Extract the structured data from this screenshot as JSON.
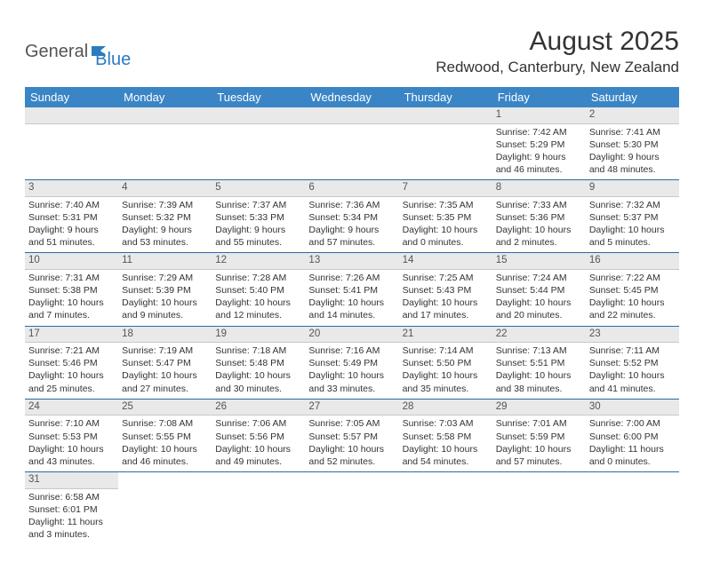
{
  "logo": {
    "part1": "General",
    "part2": "Blue"
  },
  "title": "August 2025",
  "location": "Redwood, Canterbury, New Zealand",
  "weekdays": [
    "Sunday",
    "Monday",
    "Tuesday",
    "Wednesday",
    "Thursday",
    "Friday",
    "Saturday"
  ],
  "colors": {
    "header_bg": "#3a85c6",
    "header_text": "#ffffff",
    "daynum_bg": "#e9e9e9",
    "week_border": "#2b6aa8",
    "logo_blue": "#2b7bbf",
    "text": "#333333"
  },
  "weeks": [
    [
      null,
      null,
      null,
      null,
      null,
      {
        "n": "1",
        "sunrise": "7:42 AM",
        "sunset": "5:29 PM",
        "daylight": "9 hours and 46 minutes."
      },
      {
        "n": "2",
        "sunrise": "7:41 AM",
        "sunset": "5:30 PM",
        "daylight": "9 hours and 48 minutes."
      }
    ],
    [
      {
        "n": "3",
        "sunrise": "7:40 AM",
        "sunset": "5:31 PM",
        "daylight": "9 hours and 51 minutes."
      },
      {
        "n": "4",
        "sunrise": "7:39 AM",
        "sunset": "5:32 PM",
        "daylight": "9 hours and 53 minutes."
      },
      {
        "n": "5",
        "sunrise": "7:37 AM",
        "sunset": "5:33 PM",
        "daylight": "9 hours and 55 minutes."
      },
      {
        "n": "6",
        "sunrise": "7:36 AM",
        "sunset": "5:34 PM",
        "daylight": "9 hours and 57 minutes."
      },
      {
        "n": "7",
        "sunrise": "7:35 AM",
        "sunset": "5:35 PM",
        "daylight": "10 hours and 0 minutes."
      },
      {
        "n": "8",
        "sunrise": "7:33 AM",
        "sunset": "5:36 PM",
        "daylight": "10 hours and 2 minutes."
      },
      {
        "n": "9",
        "sunrise": "7:32 AM",
        "sunset": "5:37 PM",
        "daylight": "10 hours and 5 minutes."
      }
    ],
    [
      {
        "n": "10",
        "sunrise": "7:31 AM",
        "sunset": "5:38 PM",
        "daylight": "10 hours and 7 minutes."
      },
      {
        "n": "11",
        "sunrise": "7:29 AM",
        "sunset": "5:39 PM",
        "daylight": "10 hours and 9 minutes."
      },
      {
        "n": "12",
        "sunrise": "7:28 AM",
        "sunset": "5:40 PM",
        "daylight": "10 hours and 12 minutes."
      },
      {
        "n": "13",
        "sunrise": "7:26 AM",
        "sunset": "5:41 PM",
        "daylight": "10 hours and 14 minutes."
      },
      {
        "n": "14",
        "sunrise": "7:25 AM",
        "sunset": "5:43 PM",
        "daylight": "10 hours and 17 minutes."
      },
      {
        "n": "15",
        "sunrise": "7:24 AM",
        "sunset": "5:44 PM",
        "daylight": "10 hours and 20 minutes."
      },
      {
        "n": "16",
        "sunrise": "7:22 AM",
        "sunset": "5:45 PM",
        "daylight": "10 hours and 22 minutes."
      }
    ],
    [
      {
        "n": "17",
        "sunrise": "7:21 AM",
        "sunset": "5:46 PM",
        "daylight": "10 hours and 25 minutes."
      },
      {
        "n": "18",
        "sunrise": "7:19 AM",
        "sunset": "5:47 PM",
        "daylight": "10 hours and 27 minutes."
      },
      {
        "n": "19",
        "sunrise": "7:18 AM",
        "sunset": "5:48 PM",
        "daylight": "10 hours and 30 minutes."
      },
      {
        "n": "20",
        "sunrise": "7:16 AM",
        "sunset": "5:49 PM",
        "daylight": "10 hours and 33 minutes."
      },
      {
        "n": "21",
        "sunrise": "7:14 AM",
        "sunset": "5:50 PM",
        "daylight": "10 hours and 35 minutes."
      },
      {
        "n": "22",
        "sunrise": "7:13 AM",
        "sunset": "5:51 PM",
        "daylight": "10 hours and 38 minutes."
      },
      {
        "n": "23",
        "sunrise": "7:11 AM",
        "sunset": "5:52 PM",
        "daylight": "10 hours and 41 minutes."
      }
    ],
    [
      {
        "n": "24",
        "sunrise": "7:10 AM",
        "sunset": "5:53 PM",
        "daylight": "10 hours and 43 minutes."
      },
      {
        "n": "25",
        "sunrise": "7:08 AM",
        "sunset": "5:55 PM",
        "daylight": "10 hours and 46 minutes."
      },
      {
        "n": "26",
        "sunrise": "7:06 AM",
        "sunset": "5:56 PM",
        "daylight": "10 hours and 49 minutes."
      },
      {
        "n": "27",
        "sunrise": "7:05 AM",
        "sunset": "5:57 PM",
        "daylight": "10 hours and 52 minutes."
      },
      {
        "n": "28",
        "sunrise": "7:03 AM",
        "sunset": "5:58 PM",
        "daylight": "10 hours and 54 minutes."
      },
      {
        "n": "29",
        "sunrise": "7:01 AM",
        "sunset": "5:59 PM",
        "daylight": "10 hours and 57 minutes."
      },
      {
        "n": "30",
        "sunrise": "7:00 AM",
        "sunset": "6:00 PM",
        "daylight": "11 hours and 0 minutes."
      }
    ],
    [
      {
        "n": "31",
        "sunrise": "6:58 AM",
        "sunset": "6:01 PM",
        "daylight": "11 hours and 3 minutes."
      },
      null,
      null,
      null,
      null,
      null,
      null
    ]
  ],
  "labels": {
    "sunrise": "Sunrise:",
    "sunset": "Sunset:",
    "daylight": "Daylight:"
  }
}
